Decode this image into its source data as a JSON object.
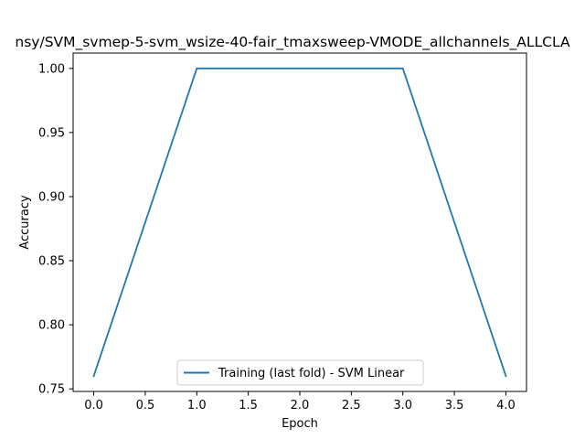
{
  "chart_data": {
    "type": "line",
    "title": "nsy/SVM_svmep-5-svm_wsize-40-fair_tmaxsweep-VMODE_allchannels_ALLCLA",
    "xlabel": "Epoch",
    "ylabel": "Accuracy",
    "xlim": [
      -0.2,
      4.2
    ],
    "ylim": [
      0.748,
      1.012
    ],
    "xticks": [
      0.0,
      0.5,
      1.0,
      1.5,
      2.0,
      2.5,
      3.0,
      3.5,
      4.0
    ],
    "xtick_labels": [
      "0.0",
      "0.5",
      "1.0",
      "1.5",
      "2.0",
      "2.5",
      "3.0",
      "3.5",
      "4.0"
    ],
    "yticks": [
      0.75,
      0.8,
      0.85,
      0.9,
      0.95,
      1.0
    ],
    "ytick_labels": [
      "0.75",
      "0.80",
      "0.85",
      "0.90",
      "0.95",
      "1.00"
    ],
    "grid": false,
    "legend_position": "lower center",
    "series": [
      {
        "name": "Training (last fold) - SVM Linear",
        "color": "#1f77b4",
        "x": [
          0,
          1,
          2,
          3,
          4
        ],
        "y": [
          0.76,
          1.0,
          1.0,
          1.0,
          0.76
        ]
      }
    ]
  }
}
